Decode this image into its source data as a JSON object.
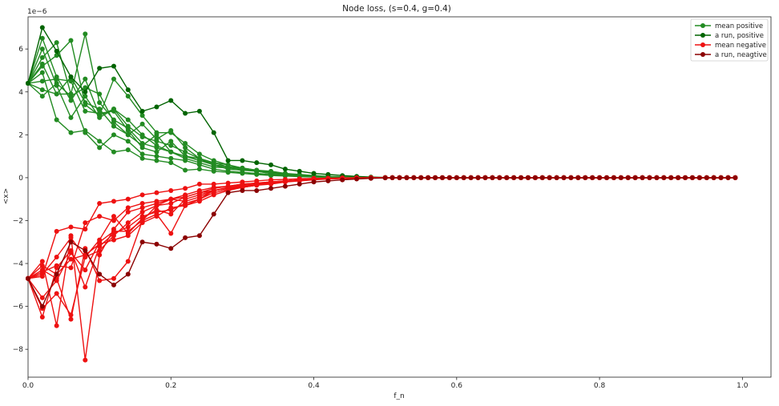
{
  "colors": {
    "mean_positive": "#228b22",
    "run_positive": "#006400",
    "mean_negative": "#ee1111",
    "run_negative": "#8b0000"
  },
  "chart_data": {
    "type": "line",
    "title": "Node loss, (s=0.4, g=0.4)",
    "xlabel": "f_n",
    "ylabel": "<x>",
    "offset_text": "1e−6",
    "xlim": [
      0.0,
      1.04
    ],
    "ylim": [
      -9.3,
      7.5
    ],
    "x_ticks": [
      0.0,
      0.2,
      0.4,
      0.6,
      0.8,
      1.0
    ],
    "x_tick_labels": [
      "0.0",
      "0.2",
      "0.4",
      "0.6",
      "0.8",
      "1.0"
    ],
    "y_ticks": [
      -8,
      -6,
      -4,
      -2,
      0,
      2,
      4,
      6
    ],
    "y_tick_labels": [
      "−8",
      "−6",
      "−4",
      "−2",
      "0",
      "2",
      "4",
      "6"
    ],
    "grid": false,
    "legend": {
      "placement": "top-right",
      "entries": [
        "mean positive",
        "a run, positive",
        "mean negative",
        "a run, neagtive"
      ]
    },
    "x": [
      0.0,
      0.02,
      0.04,
      0.06,
      0.08,
      0.1,
      0.12,
      0.14,
      0.16,
      0.18,
      0.2,
      0.22,
      0.24,
      0.26,
      0.28,
      0.3,
      0.32,
      0.34,
      0.36,
      0.38,
      0.4,
      0.42,
      0.44,
      0.46,
      0.48,
      0.5
    ],
    "series": [
      {
        "name": "mean positive",
        "color_key": "mean_positive",
        "values": [
          4.4,
          6.5,
          4.7,
          3.6,
          4.6,
          2.9,
          3.2,
          2.4,
          1.9,
          1.7,
          1.5,
          1.2,
          0.9,
          0.6,
          0.5,
          0.45,
          0.35,
          0.3,
          0.2,
          0.15,
          0.1,
          0.06,
          0.04,
          0.02,
          0.01,
          0.0
        ]
      },
      {
        "name": "",
        "color_key": "mean_positive",
        "values": [
          4.4,
          5.6,
          6.3,
          3.9,
          6.7,
          3.5,
          2.7,
          2.3,
          1.6,
          1.4,
          1.2,
          0.9,
          0.7,
          0.5,
          0.45,
          0.4,
          0.3,
          0.25,
          0.2,
          0.12,
          0.08,
          0.05,
          0.03,
          0.02,
          0.01,
          0.0
        ]
      },
      {
        "name": "",
        "color_key": "mean_positive",
        "values": [
          4.4,
          6.0,
          4.3,
          2.8,
          3.8,
          2.8,
          3.2,
          2.7,
          2.0,
          1.5,
          1.2,
          1.0,
          0.8,
          0.6,
          0.5,
          0.4,
          0.3,
          0.25,
          0.18,
          0.12,
          0.08,
          0.05,
          0.03,
          0.02,
          0.01,
          0.0
        ]
      },
      {
        "name": "",
        "color_key": "mean_positive",
        "values": [
          4.4,
          5.3,
          3.9,
          4.7,
          3.5,
          3.2,
          2.4,
          2.0,
          2.5,
          1.8,
          2.2,
          1.4,
          0.9,
          0.6,
          0.4,
          0.35,
          0.3,
          0.2,
          0.15,
          0.1,
          0.08,
          0.05,
          0.03,
          0.02,
          0.01,
          0.0
        ]
      },
      {
        "name": "",
        "color_key": "mean_positive",
        "values": [
          4.4,
          4.5,
          4.6,
          4.5,
          3.1,
          3.0,
          3.1,
          2.2,
          1.4,
          1.2,
          1.7,
          1.0,
          0.8,
          0.7,
          0.6,
          0.4,
          0.3,
          0.25,
          0.15,
          0.1,
          0.07,
          0.05,
          0.03,
          0.02,
          0.01,
          0.0
        ]
      },
      {
        "name": "",
        "color_key": "mean_positive",
        "values": [
          4.4,
          4.9,
          2.7,
          2.1,
          2.2,
          1.7,
          1.2,
          1.3,
          0.9,
          0.8,
          0.7,
          0.35,
          0.4,
          0.3,
          0.25,
          0.2,
          0.15,
          0.1,
          0.08,
          0.05,
          0.03,
          0.02,
          0.01,
          0.0,
          0.0,
          0.0
        ]
      },
      {
        "name": "",
        "color_key": "mean_positive",
        "values": [
          4.4,
          4.1,
          3.9,
          3.9,
          2.1,
          1.4,
          2.0,
          1.7,
          1.1,
          1.0,
          0.9,
          0.8,
          0.6,
          0.4,
          0.3,
          0.25,
          0.2,
          0.15,
          0.1,
          0.06,
          0.04,
          0.02,
          0.01,
          0.0,
          0.0,
          0.0
        ]
      },
      {
        "name": "",
        "color_key": "mean_positive",
        "values": [
          4.4,
          3.8,
          4.4,
          3.8,
          4.2,
          3.9,
          2.6,
          2.0,
          1.5,
          2.0,
          1.2,
          1.0,
          0.9,
          0.7,
          0.5,
          0.4,
          0.3,
          0.2,
          0.15,
          0.1,
          0.06,
          0.04,
          0.02,
          0.01,
          0.0,
          0.0
        ]
      },
      {
        "name": "",
        "color_key": "mean_positive",
        "values": [
          4.4,
          5.2,
          5.7,
          6.4,
          3.4,
          2.9,
          4.6,
          3.8,
          2.9,
          2.1,
          2.1,
          1.6,
          1.1,
          0.8,
          0.6,
          0.45,
          0.35,
          0.25,
          0.18,
          0.12,
          0.08,
          0.05,
          0.03,
          0.02,
          0.01,
          0.0
        ]
      },
      {
        "name": "a run, positive",
        "color_key": "run_positive",
        "values": [
          4.4,
          7.0,
          5.9,
          4.7,
          4.0,
          5.1,
          5.2,
          4.1,
          3.1,
          3.3,
          3.6,
          3.0,
          3.1,
          2.1,
          0.8,
          0.8,
          0.7,
          0.6,
          0.4,
          0.3,
          0.2,
          0.15,
          0.1,
          0.06,
          0.03,
          0.01
        ]
      },
      {
        "name": "mean negative",
        "color_key": "mean_negative",
        "values": [
          -4.7,
          -6.5,
          -4.2,
          -3.4,
          -5.1,
          -3.2,
          -2.6,
          -2.3,
          -1.8,
          -1.6,
          -1.5,
          -1.2,
          -1.0,
          -0.6,
          -0.5,
          -0.45,
          -0.35,
          -0.3,
          -0.2,
          -0.15,
          -0.1,
          -0.06,
          -0.04,
          -0.02,
          -0.01,
          0.0
        ]
      },
      {
        "name": "",
        "color_key": "mean_negative",
        "values": [
          -4.7,
          -3.9,
          -6.9,
          -2.7,
          -8.5,
          -3.6,
          -2.4,
          -1.6,
          -1.4,
          -1.2,
          -1.0,
          -0.8,
          -0.6,
          -0.45,
          -0.4,
          -0.3,
          -0.25,
          -0.2,
          -0.15,
          -0.1,
          -0.06,
          -0.04,
          -0.02,
          -0.01,
          0.0,
          0.0
        ]
      },
      {
        "name": "",
        "color_key": "mean_negative",
        "values": [
          -4.7,
          -4.3,
          -4.7,
          -6.6,
          -3.3,
          -4.8,
          -4.7,
          -3.9,
          -2.0,
          -1.3,
          -1.0,
          -1.1,
          -0.9,
          -0.6,
          -0.5,
          -0.4,
          -0.3,
          -0.2,
          -0.15,
          -0.1,
          -0.07,
          -0.05,
          -0.03,
          -0.02,
          -0.01,
          0.0
        ]
      },
      {
        "name": "",
        "color_key": "mean_negative",
        "values": [
          -4.7,
          -6.1,
          -5.4,
          -6.4,
          -3.7,
          -2.9,
          -1.8,
          -2.6,
          -1.9,
          -1.5,
          -1.7,
          -1.0,
          -0.8,
          -0.6,
          -0.45,
          -0.35,
          -0.3,
          -0.2,
          -0.15,
          -0.1,
          -0.07,
          -0.05,
          -0.03,
          -0.02,
          -0.01,
          0.0
        ]
      },
      {
        "name": "",
        "color_key": "mean_negative",
        "values": [
          -4.7,
          -4.5,
          -3.7,
          -2.8,
          -3.7,
          -3.4,
          -2.7,
          -2.1,
          -1.6,
          -1.3,
          -1.2,
          -0.9,
          -0.7,
          -0.6,
          -0.5,
          -0.4,
          -0.3,
          -0.25,
          -0.18,
          -0.12,
          -0.08,
          -0.05,
          -0.03,
          -0.02,
          -0.01,
          0.0
        ]
      },
      {
        "name": "",
        "color_key": "mean_negative",
        "values": [
          -4.7,
          -4.6,
          -2.5,
          -2.3,
          -2.4,
          -1.2,
          -1.1,
          -1.0,
          -0.8,
          -0.7,
          -0.6,
          -0.5,
          -0.3,
          -0.3,
          -0.25,
          -0.2,
          -0.15,
          -0.1,
          -0.08,
          -0.05,
          -0.03,
          -0.02,
          -0.01,
          0.0,
          0.0,
          0.0
        ]
      },
      {
        "name": "",
        "color_key": "mean_negative",
        "values": [
          -4.7,
          -4.4,
          -4.1,
          -4.2,
          -2.1,
          -1.8,
          -2.0,
          -1.4,
          -1.2,
          -1.1,
          -1.0,
          -0.9,
          -0.7,
          -0.5,
          -0.4,
          -0.3,
          -0.25,
          -0.2,
          -0.15,
          -0.1,
          -0.06,
          -0.04,
          -0.02,
          -0.01,
          0.0,
          0.0
        ]
      },
      {
        "name": "",
        "color_key": "mean_negative",
        "values": [
          -4.7,
          -5.6,
          -4.8,
          -3.5,
          -4.3,
          -3.0,
          -2.5,
          -2.5,
          -2.0,
          -1.7,
          -2.6,
          -1.3,
          -1.0,
          -0.7,
          -0.55,
          -0.45,
          -0.35,
          -0.25,
          -0.18,
          -0.12,
          -0.08,
          -0.05,
          -0.03,
          -0.02,
          -0.01,
          0.0
        ]
      },
      {
        "name": "",
        "color_key": "mean_negative",
        "values": [
          -4.7,
          -4.1,
          -4.5,
          -3.8,
          -3.6,
          -3.1,
          -2.9,
          -2.7,
          -2.1,
          -1.8,
          -1.4,
          -1.3,
          -1.1,
          -0.8,
          -0.6,
          -0.45,
          -0.35,
          -0.25,
          -0.18,
          -0.12,
          -0.08,
          -0.05,
          -0.03,
          -0.02,
          -0.01,
          0.0
        ]
      },
      {
        "name": "a run, neagtive",
        "color_key": "run_negative",
        "values": [
          -4.7,
          -6.0,
          -4.5,
          -3.0,
          -3.4,
          -4.5,
          -5.0,
          -4.5,
          -3.0,
          -3.1,
          -3.3,
          -2.8,
          -2.7,
          -1.7,
          -0.7,
          -0.6,
          -0.6,
          -0.5,
          -0.4,
          -0.3,
          -0.2,
          -0.15,
          -0.1,
          -0.06,
          -0.03,
          -0.01
        ]
      }
    ]
  }
}
